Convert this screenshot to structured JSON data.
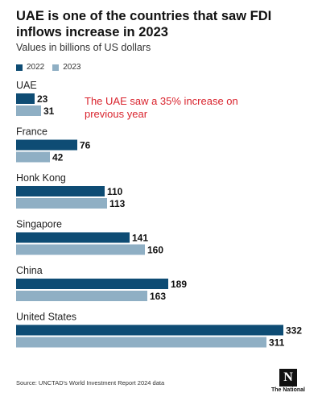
{
  "title": "UAE is one of the countries that saw FDI inflows increase in 2023",
  "subtitle": "Values in billions of US dollars",
  "annotation": "The UAE saw a 35% increase on previous year",
  "source": "Source: UNCTAD's World Investment Report 2024 data",
  "logo": {
    "mark": "N",
    "wordmark": "The National"
  },
  "colors": {
    "series_2022": "#0e4c74",
    "series_2023": "#8fafc4",
    "annotation": "#d9232d"
  },
  "chart_data": {
    "type": "bar",
    "orientation": "horizontal",
    "categories": [
      "UAE",
      "France",
      "Honk Kong",
      "Singapore",
      "China",
      "United States"
    ],
    "series": [
      {
        "name": "2022",
        "values": [
          23,
          76,
          110,
          141,
          189,
          332
        ]
      },
      {
        "name": "2023",
        "values": [
          31,
          42,
          113,
          160,
          163,
          311
        ]
      }
    ],
    "title": "UAE is one of the countries that saw FDI inflows increase in 2023",
    "subtitle": "Values in billions of US dollars",
    "xlim": [
      0,
      332
    ],
    "grid": false,
    "legend": "top-left"
  }
}
